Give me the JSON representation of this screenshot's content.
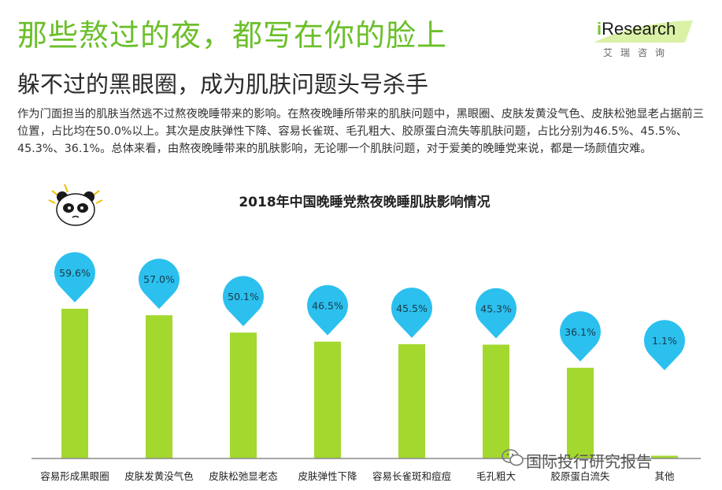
{
  "header": {
    "headline": "那些熬过的夜，都写在你的脸上",
    "subheadline": "躲不过的黑眼圈，成为肌肤问题头号杀手",
    "brand_prefix": "i",
    "brand_name": "Research",
    "brand_chinese": "艾瑞咨询"
  },
  "paragraph": "作为门面担当的肌肤当然逃不过熬夜晚睡带来的影响。在熬夜晚睡所带来的肌肤问题中，黑眼圈、皮肤发黄没气色、皮肤松弛显老占据前三位置，占比均在50.0%以上。其次是皮肤弹性下降、容易长雀斑、毛孔粗大、胶原蛋白流失等肌肤问题，占比分别为46.5%、45.5%、45.3%、36.1%。总体来看，由熬夜晚睡带来的肌肤影响，无论哪一个肌肤问题，对于爱美的晚睡党来说，都是一场颜值灾难。",
  "watermark": "国际投行研究报告",
  "colors": {
    "headline": "#6bbf2a",
    "bar": "#a3d82e",
    "pin": "#2bc0ee",
    "axis": "#888888"
  },
  "icons": [
    "panda-mascot-icon",
    "wechat-logo-icon"
  ],
  "chart_data": {
    "type": "bar",
    "title": "2018年中国晚睡党熬夜晚睡肌肤影响情况",
    "categories": [
      "容易形成黑眼圈",
      "皮肤发黄没气色",
      "皮肤松弛显老态",
      "皮肤弹性下降",
      "容易长雀斑和痘痘",
      "毛孔粗大",
      "胶原蛋白流失",
      "其他"
    ],
    "values": [
      59.6,
      57.0,
      50.1,
      46.5,
      45.5,
      45.3,
      36.1,
      1.1
    ],
    "labels": [
      "59.6%",
      "57.0%",
      "50.1%",
      "46.5%",
      "45.5%",
      "45.3%",
      "36.1%",
      "1.1%"
    ],
    "ylim": [
      0,
      100
    ],
    "grid": false,
    "legend": "none"
  }
}
